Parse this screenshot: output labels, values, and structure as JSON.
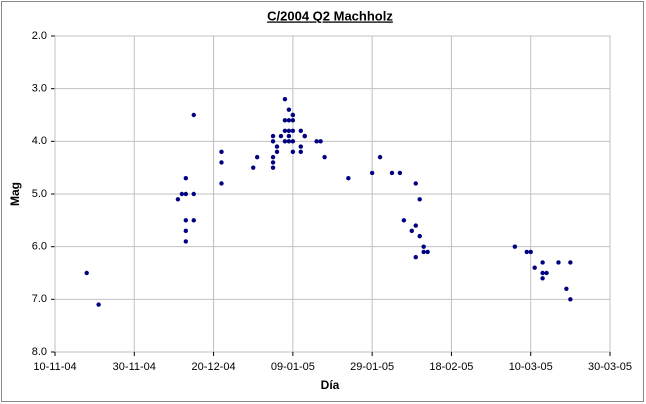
{
  "chart_data": {
    "type": "scatter",
    "title": "C/2004 Q2 Machholz",
    "xlabel": "Día",
    "ylabel": "Mag",
    "color": "#000080",
    "grid": true,
    "y_inverted": true,
    "x": [
      "2004-11-18",
      "2004-11-21",
      "2004-12-11",
      "2004-12-12",
      "2004-12-13",
      "2004-12-13",
      "2004-12-13",
      "2004-12-13",
      "2004-12-13",
      "2004-12-15",
      "2004-12-15",
      "2004-12-15",
      "2004-12-22",
      "2004-12-22",
      "2004-12-22",
      "2004-12-30",
      "2004-12-31",
      "2005-01-04",
      "2005-01-04",
      "2005-01-04",
      "2005-01-04",
      "2005-01-04",
      "2005-01-05",
      "2005-01-05",
      "2005-01-06",
      "2005-01-07",
      "2005-01-07",
      "2005-01-07",
      "2005-01-07",
      "2005-01-08",
      "2005-01-08",
      "2005-01-08",
      "2005-01-08",
      "2005-01-08",
      "2005-01-09",
      "2005-01-09",
      "2005-01-09",
      "2005-01-09",
      "2005-01-09",
      "2005-01-09",
      "2005-01-11",
      "2005-01-11",
      "2005-01-11",
      "2005-01-12",
      "2005-01-12",
      "2005-01-15",
      "2005-01-16",
      "2005-01-17",
      "2005-01-23",
      "2005-01-29",
      "2005-01-31",
      "2005-02-03",
      "2005-02-05",
      "2005-02-06",
      "2005-02-08",
      "2005-02-09",
      "2005-02-09",
      "2005-02-09",
      "2005-02-10",
      "2005-02-10",
      "2005-02-11",
      "2005-02-11",
      "2005-02-12",
      "2005-03-06",
      "2005-03-09",
      "2005-03-10",
      "2005-03-11",
      "2005-03-13",
      "2005-03-13",
      "2005-03-13",
      "2005-03-14",
      "2005-03-17",
      "2005-03-19",
      "2005-03-20",
      "2005-03-20"
    ],
    "values": [
      6.5,
      7.1,
      5.1,
      5.0,
      4.7,
      5.0,
      5.5,
      5.7,
      5.9,
      3.5,
      5.0,
      5.5,
      4.2,
      4.4,
      4.8,
      4.5,
      4.3,
      3.9,
      4.0,
      4.3,
      4.4,
      4.5,
      4.1,
      4.2,
      3.9,
      3.2,
      3.6,
      3.8,
      4.0,
      3.4,
      3.6,
      3.8,
      3.9,
      4.0,
      3.6,
      3.8,
      3.5,
      4.0,
      4.2,
      3.5,
      3.8,
      4.2,
      4.1,
      3.9,
      3.9,
      4.0,
      4.0,
      4.3,
      4.7,
      4.6,
      4.3,
      4.6,
      4.6,
      5.5,
      5.7,
      4.8,
      5.6,
      6.2,
      5.1,
      5.8,
      6.0,
      6.1,
      6.1,
      6.0,
      6.1,
      6.1,
      6.4,
      6.3,
      6.6,
      6.5,
      6.5,
      6.3,
      6.8,
      6.3,
      7.0
    ],
    "xlim": [
      "2004-11-10",
      "2005-03-30"
    ],
    "xticks": [
      {
        "value": "2004-11-10",
        "label": "10-11-04"
      },
      {
        "value": "2004-11-30",
        "label": "30-11-04"
      },
      {
        "value": "2004-12-20",
        "label": "20-12-04"
      },
      {
        "value": "2005-01-09",
        "label": "09-01-05"
      },
      {
        "value": "2005-01-29",
        "label": "29-01-05"
      },
      {
        "value": "2005-02-18",
        "label": "18-02-05"
      },
      {
        "value": "2005-03-10",
        "label": "10-03-05"
      },
      {
        "value": "2005-03-30",
        "label": "30-03-05"
      }
    ],
    "ylim": [
      2,
      8
    ],
    "yticks": [
      {
        "value": 2,
        "label": "2.0"
      },
      {
        "value": 3,
        "label": "3.0"
      },
      {
        "value": 4,
        "label": "4.0"
      },
      {
        "value": 5,
        "label": "5.0"
      },
      {
        "value": 6,
        "label": "6.0"
      },
      {
        "value": 7,
        "label": "7.0"
      },
      {
        "value": 8,
        "label": "8.0"
      }
    ]
  }
}
